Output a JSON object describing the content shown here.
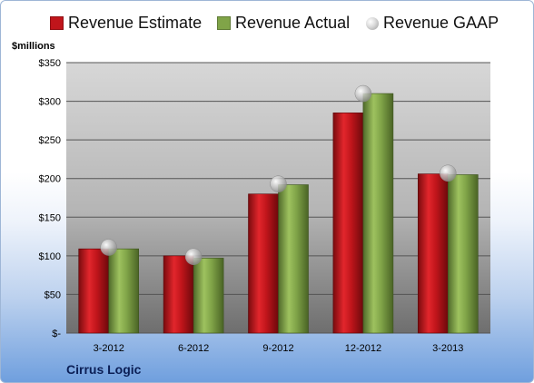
{
  "chart_data": {
    "type": "bar",
    "title": "",
    "ylabel": "$millions",
    "xlabel": "",
    "categories": [
      "3-2012",
      "6-2012",
      "9-2012",
      "12-2012",
      "3-2013"
    ],
    "series": [
      {
        "name": "Revenue Estimate",
        "kind": "bar",
        "color": "#c0151b",
        "values": [
          109,
          100,
          180,
          285,
          206
        ]
      },
      {
        "name": "Revenue Actual",
        "kind": "bar",
        "color": "#80a448",
        "values": [
          109,
          97,
          192,
          310,
          205
        ]
      },
      {
        "name": "Revenue GAAP",
        "kind": "marker",
        "color": "#b0b0b0",
        "values": [
          111,
          99,
          193,
          310,
          207
        ]
      }
    ],
    "ylim": [
      0,
      350
    ],
    "yticks": [
      0,
      50,
      100,
      150,
      200,
      250,
      300,
      350
    ],
    "ytick_labels": [
      "$-",
      "$50",
      "$100",
      "$150",
      "$200",
      "$250",
      "$300",
      "$350"
    ],
    "grid": true,
    "legend_position": "top"
  },
  "legend": {
    "estimate": "Revenue Estimate",
    "actual": "Revenue Actual",
    "gaap": "Revenue GAAP"
  },
  "unit_label": "$millions",
  "company": "Cirrus Logic"
}
